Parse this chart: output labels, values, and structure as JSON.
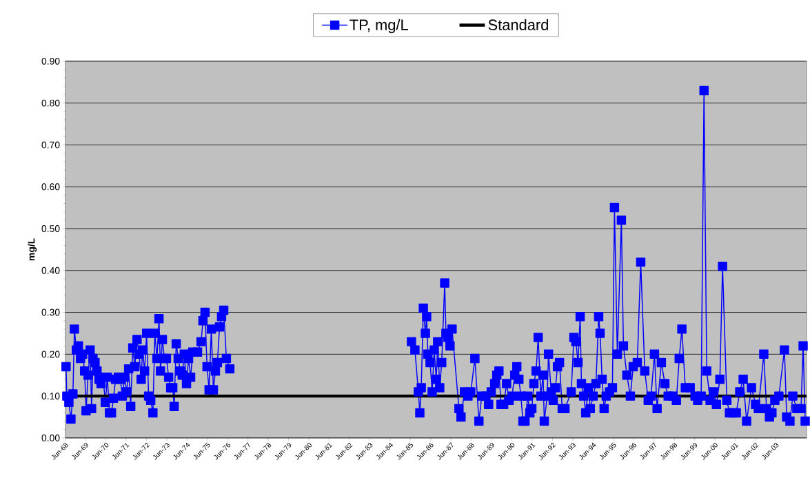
{
  "chart_data": {
    "type": "line",
    "ylabel": "mg/L",
    "legend": "top",
    "grid": "y",
    "marker": "square",
    "line_style": "solid",
    "xlim": [
      "1968-06-01",
      "2004-12-05"
    ],
    "ylim": [
      0,
      0.9
    ],
    "yticks": [
      {
        "value": 0,
        "label": "0.00"
      },
      {
        "value": 0.1,
        "label": "0.10"
      },
      {
        "value": 0.2,
        "label": "0.20"
      },
      {
        "value": 0.3,
        "label": "0.30"
      },
      {
        "value": 0.4,
        "label": "0.40"
      },
      {
        "value": 0.5,
        "label": "0.50"
      },
      {
        "value": 0.6,
        "label": "0.60"
      },
      {
        "value": 0.7,
        "label": "0.70"
      },
      {
        "value": 0.8,
        "label": "0.80"
      },
      {
        "value": 0.9,
        "label": "0.90"
      }
    ],
    "xticks": [
      {
        "value": "1968-06",
        "label": "Jun-68"
      },
      {
        "value": "1969-06",
        "label": "Jun-69"
      },
      {
        "value": "1970-06",
        "label": "Jun-70"
      },
      {
        "value": "1971-06",
        "label": "Jun-71"
      },
      {
        "value": "1972-06",
        "label": "Jun-72"
      },
      {
        "value": "1973-06",
        "label": "Jun-73"
      },
      {
        "value": "1974-06",
        "label": "Jun-74"
      },
      {
        "value": "1975-06",
        "label": "Jun-75"
      },
      {
        "value": "1976-06",
        "label": "Jun-76"
      },
      {
        "value": "1977-06",
        "label": "Jun-77"
      },
      {
        "value": "1978-06",
        "label": "Jun-78"
      },
      {
        "value": "1979-06",
        "label": "Jun-79"
      },
      {
        "value": "1980-06",
        "label": "Jun-80"
      },
      {
        "value": "1981-06",
        "label": "Jun-81"
      },
      {
        "value": "1982-06",
        "label": "Jun-82"
      },
      {
        "value": "1983-06",
        "label": "Jun-83"
      },
      {
        "value": "1984-06",
        "label": "Jun-84"
      },
      {
        "value": "1985-06",
        "label": "Jun-85"
      },
      {
        "value": "1986-06",
        "label": "Jun-86"
      },
      {
        "value": "1987-06",
        "label": "Jun-87"
      },
      {
        "value": "1988-06",
        "label": "Jun-88"
      },
      {
        "value": "1989-06",
        "label": "Jun-89"
      },
      {
        "value": "1990-06",
        "label": "Jun-90"
      },
      {
        "value": "1991-06",
        "label": "Jun-91"
      },
      {
        "value": "1992-06",
        "label": "Jun-92"
      },
      {
        "value": "1993-06",
        "label": "Jun-93"
      },
      {
        "value": "1994-06",
        "label": "Jun-94"
      },
      {
        "value": "1995-06",
        "label": "Jun-95"
      },
      {
        "value": "1996-06",
        "label": "Jun-96"
      },
      {
        "value": "1997-06",
        "label": "Jun-97"
      },
      {
        "value": "1998-06",
        "label": "Jun-98"
      },
      {
        "value": "1999-06",
        "label": "Jun-99"
      },
      {
        "value": "2000-06",
        "label": "Jun-00"
      },
      {
        "value": "2001-06",
        "label": "Jun-01"
      },
      {
        "value": "2002-06",
        "label": "Jun-02"
      },
      {
        "value": "2003-06",
        "label": "Jun-03"
      }
    ],
    "series": [
      {
        "name": "TP, mg/L",
        "color": "#0000ff",
        "x": [
          "1968-06-13",
          "1968-06-27",
          "1968-08-03",
          "1968-09-09",
          "1968-10-15",
          "1968-11-10",
          "1968-12-16",
          "1969-01-22",
          "1969-03-02",
          "1969-04-08",
          "1969-05-14",
          "1969-06-09",
          "1969-07-15",
          "1969-08-21",
          "1969-09-16",
          "1969-10-11",
          "1969-11-17",
          "1969-12-23",
          "1970-01-28",
          "1970-03-05",
          "1970-04-11",
          "1970-05-21",
          "1970-06-27",
          "1970-08-03",
          "1970-09-09",
          "1970-10-15",
          "1970-11-21",
          "1971-01-11",
          "1971-02-17",
          "1971-03-23",
          "1971-05-03",
          "1971-06-09",
          "1971-07-15",
          "1971-08-21",
          "1971-09-27",
          "1971-11-03",
          "1971-12-13",
          "1972-01-19",
          "1972-02-25",
          "1972-03-20",
          "1972-04-26",
          "1972-06-02",
          "1972-07-08",
          "1972-08-14",
          "1972-09-23",
          "1972-10-28",
          "1972-12-05",
          "1973-01-11",
          "1973-02-07",
          "1973-03-13",
          "1973-04-19",
          "1973-05-25",
          "1973-07-04",
          "1973-08-10",
          "1973-09-16",
          "1973-10-11",
          "1973-11-17",
          "1973-12-23",
          "1974-01-28",
          "1974-03-05",
          "1974-04-11",
          "1974-05-21",
          "1974-06-27",
          "1974-08-03",
          "1974-09-09",
          "1974-12-05",
          "1975-02-07",
          "1975-03-13",
          "1975-04-19",
          "1975-05-25",
          "1975-07-01",
          "1975-08-10",
          "1975-09-16",
          "1975-10-22",
          "1975-11-28",
          "1976-01-04",
          "1976-02-10",
          "1976-03-20",
          "1976-05-07",
          "1976-07-08",
          "1980-06-01",
          "1985-06-20",
          "1985-08-21",
          "1985-10-22",
          "1985-11-17",
          "1985-12-13",
          "1986-01-19",
          "1986-02-25",
          "1986-03-20",
          "1986-04-11",
          "1986-05-21",
          "1986-06-27",
          "1986-08-03",
          "1986-09-09",
          "1986-10-04",
          "1986-11-10",
          "1986-12-16",
          "1987-02-07",
          "1987-03-02",
          "1987-04-08",
          "1987-05-14",
          "1987-06-20",
          "1987-10-22",
          "1987-11-28",
          "1988-01-28",
          "1988-04-01",
          "1988-05-21",
          "1988-08-03",
          "1988-10-15",
          "1988-12-05",
          "1989-02-17",
          "1989-04-08",
          "1989-05-25",
          "1989-07-26",
          "1989-09-02",
          "1989-10-11",
          "1989-11-17",
          "1990-01-04",
          "1990-02-25",
          "1990-04-11",
          "1990-06-02",
          "1990-07-22",
          "1990-08-28",
          "1990-10-04",
          "1990-11-10",
          "1990-12-16",
          "1991-01-22",
          "1991-03-13",
          "1991-04-19",
          "1991-05-25",
          "1991-07-01",
          "1991-08-10",
          "1991-09-16",
          "1991-11-03",
          "1991-12-13",
          "1992-01-04",
          "1992-02-25",
          "1992-03-20",
          "1992-05-07",
          "1992-06-13",
          "1992-07-22",
          "1992-08-28",
          "1992-10-04",
          "1992-11-21",
          "1993-01-11",
          "1993-05-03",
          "1993-06-20",
          "1993-07-26",
          "1993-09-02",
          "1993-10-11",
          "1993-11-03",
          "1993-12-13",
          "1994-01-19",
          "1994-03-05",
          "1994-04-11",
          "1994-06-02",
          "1994-07-22",
          "1994-09-09",
          "1994-10-04",
          "1994-11-10",
          "1994-12-16",
          "1995-01-22",
          "1995-03-23",
          "1995-05-14",
          "1995-06-20",
          "1995-08-10",
          "1995-10-22",
          "1995-11-28",
          "1996-01-28",
          "1996-04-01",
          "1996-05-21",
          "1996-08-03",
          "1996-10-04",
          "1996-12-16",
          "1997-02-17",
          "1997-04-08",
          "1997-06-09",
          "1997-07-26",
          "1997-10-11",
          "1997-12-13",
          "1998-02-10",
          "1998-05-07",
          "1998-07-08",
          "1998-08-28",
          "1998-10-15",
          "1998-12-16",
          "1999-03-13",
          "1999-06-09",
          "1999-07-26",
          "1999-09-27",
          "1999-11-17",
          "2000-01-04",
          "2000-03-05",
          "2000-05-07",
          "2000-06-27",
          "2000-08-28",
          "2000-10-15",
          "2001-01-01",
          "2001-02-17",
          "2001-04-19",
          "2001-06-20",
          "2001-08-21",
          "2001-10-22",
          "2001-12-23",
          "2002-03-20",
          "2002-06-02",
          "2002-07-22",
          "2002-10-28",
          "2002-12-16",
          "2003-02-07",
          "2003-03-23",
          "2003-05-14",
          "2003-07-26",
          "2003-11-03",
          "2003-12-13",
          "2004-02-10",
          "2004-04-01",
          "2004-06-13",
          "2004-08-28",
          "2004-10-04",
          "2004-11-10"
        ],
        "values": [
          0.17,
          0.1,
          0.085,
          0.045,
          0.105,
          0.26,
          0.21,
          0.22,
          0.19,
          0.2,
          0.16,
          0.065,
          0.15,
          0.21,
          0.07,
          0.19,
          0.18,
          0.16,
          0.14,
          0.13,
          0.145,
          0.085,
          0.145,
          0.06,
          0.06,
          0.095,
          0.14,
          0.145,
          0.14,
          0.1,
          0.145,
          0.11,
          0.165,
          0.075,
          0.215,
          0.17,
          0.235,
          0.2,
          0.14,
          0.21,
          0.16,
          0.25,
          0.1,
          0.09,
          0.06,
          0.25,
          0.19,
          0.285,
          0.16,
          0.235,
          0.19,
          0.19,
          0.145,
          0.12,
          0.12,
          0.075,
          0.225,
          0.19,
          0.16,
          0.15,
          0.2,
          0.13,
          0.19,
          0.145,
          0.205,
          0.205,
          0.23,
          0.28,
          0.3,
          0.17,
          0.115,
          0.26,
          0.115,
          0.16,
          0.18,
          0.265,
          0.29,
          0.305,
          0.19,
          0.165,
          null,
          0.23,
          0.21,
          0.11,
          0.06,
          0.12,
          0.31,
          0.25,
          0.29,
          0.2,
          0.18,
          0.11,
          0.21,
          0.14,
          0.23,
          0.12,
          0.18,
          0.37,
          0.25,
          0.24,
          0.22,
          0.26,
          0.07,
          0.05,
          0.11,
          0.1,
          0.11,
          0.19,
          0.04,
          0.1,
          0.1,
          0.08,
          0.11,
          0.13,
          0.15,
          0.16,
          0.08,
          0.08,
          0.13,
          0.09,
          0.1,
          0.15,
          0.17,
          0.14,
          0.1,
          0.04,
          0.04,
          0.1,
          0.06,
          0.07,
          0.13,
          0.16,
          0.24,
          0.1,
          0.15,
          0.04,
          0.1,
          0.2,
          0.11,
          0.09,
          0.12,
          0.17,
          0.18,
          0.07,
          0.07,
          0.11,
          0.24,
          0.23,
          0.18,
          0.29,
          0.13,
          0.1,
          0.06,
          0.12,
          0.07,
          0.1,
          0.13,
          0.29,
          0.25,
          0.14,
          0.07,
          0.1,
          0.11,
          0.12,
          0.55,
          0.2,
          0.52,
          0.22,
          0.15,
          0.1,
          0.17,
          0.18,
          0.42,
          0.16,
          0.09,
          0.1,
          0.2,
          0.07,
          0.18,
          0.13,
          0.1,
          0.1,
          0.09,
          0.19,
          0.26,
          0.12,
          0.12,
          0.1,
          0.09,
          0.1,
          0.83,
          0.16,
          0.09,
          0.11,
          0.08,
          0.14,
          0.41,
          0.09,
          0.06,
          0.06,
          0.06,
          0.11,
          0.14,
          0.04,
          0.12,
          0.08,
          0.07,
          0.2,
          0.07,
          0.05,
          0.06,
          0.09,
          0.1,
          0.21,
          0.05,
          0.04,
          0.1,
          0.07,
          0.07,
          0.22,
          0.04
        ]
      }
    ],
    "ref_lines": [
      {
        "axis": "y",
        "value": 0.1,
        "label": "Standard",
        "color": "#000000",
        "line_style": "solid"
      }
    ]
  }
}
